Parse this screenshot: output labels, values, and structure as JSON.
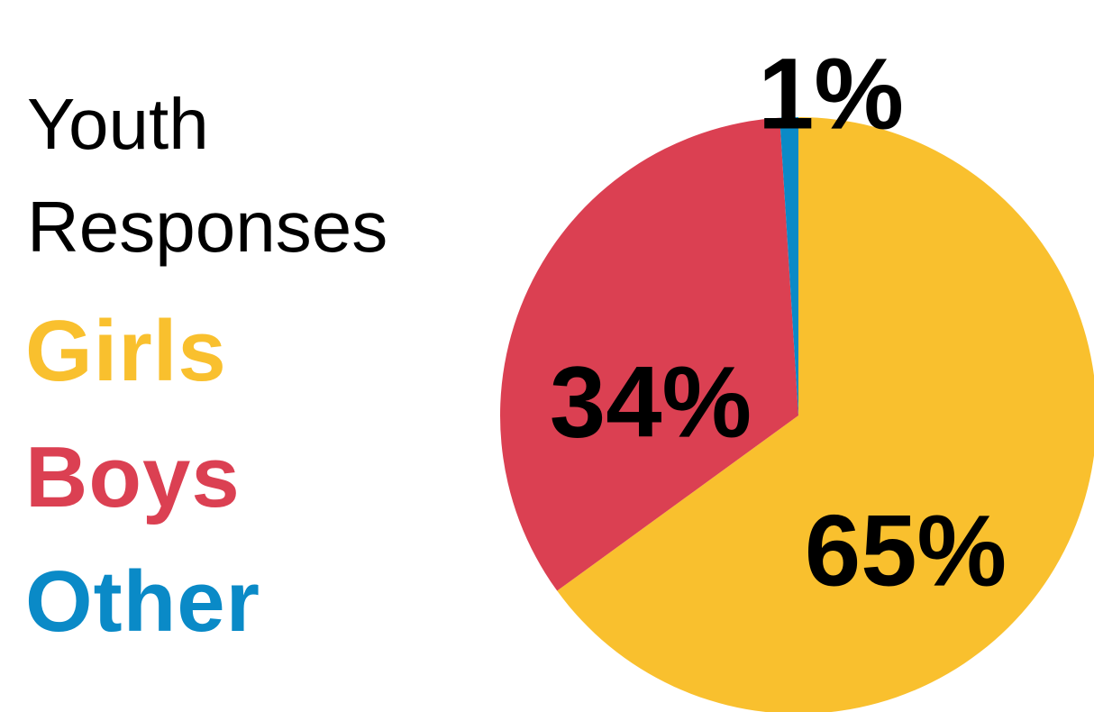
{
  "chart_data": {
    "type": "pie",
    "title_lines": [
      "Youth",
      "Responses"
    ],
    "slices": [
      {
        "name": "Girls",
        "value": 65,
        "label": "65%",
        "color": "#F9C02E"
      },
      {
        "name": "Boys",
        "value": 34,
        "label": "34%",
        "color": "#DB4052"
      },
      {
        "name": "Other",
        "value": 1,
        "label": "1%",
        "color": "#0A8AC7"
      }
    ],
    "start_angle": "12 o'clock",
    "direction": "clockwise",
    "legend_placement": "left"
  }
}
